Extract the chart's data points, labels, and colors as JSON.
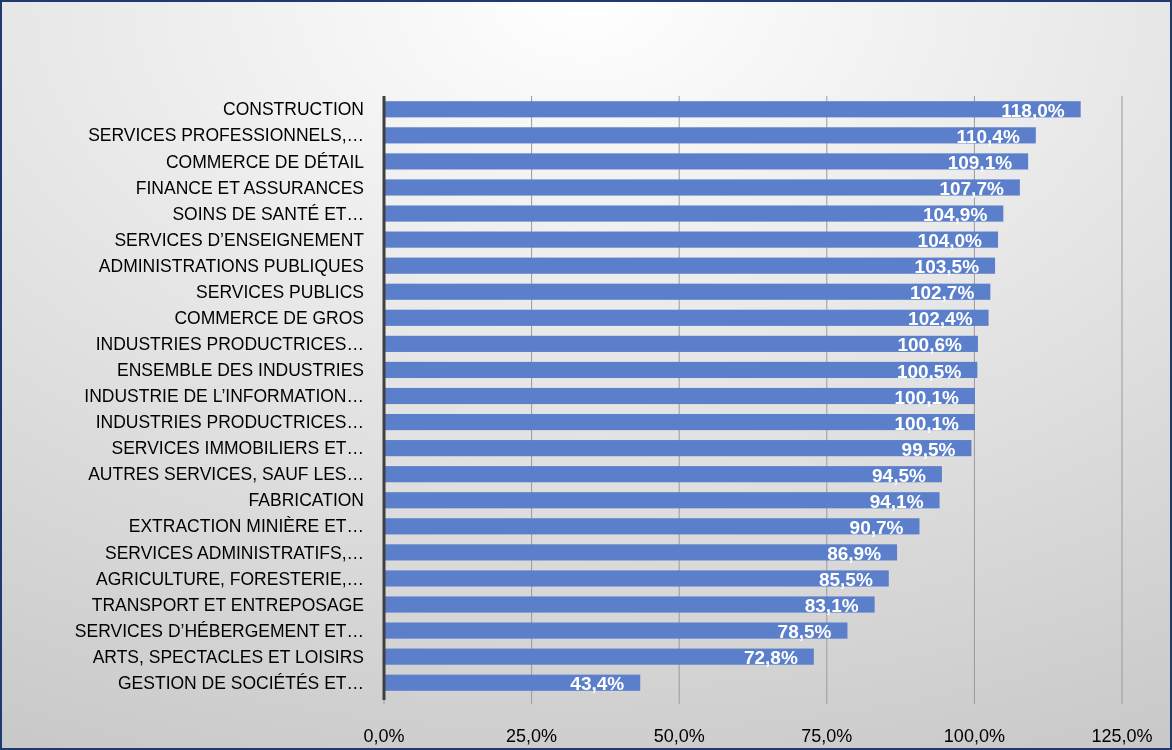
{
  "chart_data": {
    "type": "bar",
    "orientation": "horizontal",
    "categories": [
      "CONSTRUCTION",
      "SERVICES PROFESSIONNELS,…",
      "COMMERCE DE DÉTAIL",
      "FINANCE ET ASSURANCES",
      "SOINS DE SANTÉ ET…",
      "SERVICES D’ENSEIGNEMENT",
      "ADMINISTRATIONS PUBLIQUES",
      "SERVICES PUBLICS",
      "COMMERCE DE GROS",
      "INDUSTRIES PRODUCTRICES…",
      "ENSEMBLE DES INDUSTRIES",
      "INDUSTRIE DE L’INFORMATION…",
      "INDUSTRIES PRODUCTRICES…",
      "SERVICES IMMOBILIERS ET…",
      "AUTRES SERVICES, SAUF LES…",
      "FABRICATION",
      "EXTRACTION MINIÈRE ET…",
      "SERVICES ADMINISTRATIFS,…",
      "AGRICULTURE, FORESTERIE,…",
      "TRANSPORT ET ENTREPOSAGE",
      "SERVICES D’HÉBERGEMENT ET…",
      "ARTS, SPECTACLES ET LOISIRS",
      "GESTION DE SOCIÉTÉS ET…"
    ],
    "values": [
      118.0,
      110.4,
      109.1,
      107.7,
      104.9,
      104.0,
      103.5,
      102.7,
      102.4,
      100.6,
      100.5,
      100.1,
      100.1,
      99.5,
      94.5,
      94.1,
      90.7,
      86.9,
      85.5,
      83.1,
      78.5,
      72.8,
      43.4
    ],
    "value_labels": [
      "118,0%",
      "110,4%",
      "109,1%",
      "107,7%",
      "104,9%",
      "104,0%",
      "103,5%",
      "102,7%",
      "102,4%",
      "100,6%",
      "100,5%",
      "100,1%",
      "100,1%",
      "99,5%",
      "94,5%",
      "94,1%",
      "90,7%",
      "86,9%",
      "85,5%",
      "83,1%",
      "78,5%",
      "72,8%",
      "43,4%"
    ],
    "color": "#5b7fcb",
    "xlim": [
      0,
      125
    ],
    "xticks": [
      {
        "value": 0,
        "label": "0,0%"
      },
      {
        "value": 25,
        "label": "25,0%"
      },
      {
        "value": 50,
        "label": "50,0%"
      },
      {
        "value": 75,
        "label": "75,0%"
      },
      {
        "value": 100,
        "label": "100,0%"
      },
      {
        "value": 125,
        "label": "125,0%"
      }
    ],
    "grid": "x"
  }
}
